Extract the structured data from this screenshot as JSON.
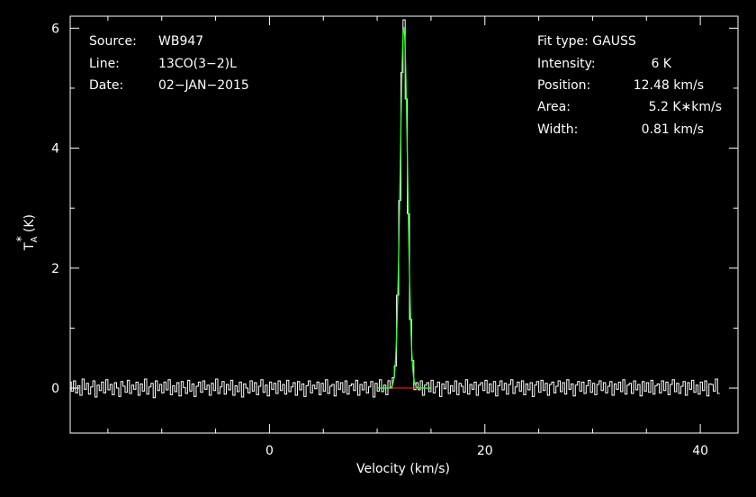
{
  "chart_data": {
    "type": "line",
    "xlabel": "Velocity (km/s)",
    "ylabel_main": "T",
    "ylabel_sub": "A",
    "ylabel_sup": "*",
    "ylabel_unit": "(K)",
    "xlim": [
      -18.5,
      43.5
    ],
    "ylim": [
      -0.75,
      6.2
    ],
    "xticks": [
      0,
      20,
      40
    ],
    "yticks": [
      0,
      2,
      4,
      6
    ],
    "grid": false,
    "header_left": [
      {
        "label": "Source:",
        "value": "WB947"
      },
      {
        "label": "Line:",
        "value": "13CO(3−2)L"
      },
      {
        "label": "Date:",
        "value": "02−JAN−2015"
      }
    ],
    "header_right_title": "Fit type: GAUSS",
    "header_right": [
      {
        "label": "Intensity:",
        "value": "6 K"
      },
      {
        "label": "Position:",
        "value": "12.48 km/s"
      },
      {
        "label": "Area:",
        "value": "5.2 K∗km/s"
      },
      {
        "label": "Width:",
        "value": "0.81 km/s"
      }
    ],
    "series": [
      {
        "kind": "spectrum",
        "color": "#ffffff",
        "x_start": -18.5,
        "x_step": 0.2,
        "values": [
          0.1,
          -0.05,
          0.12,
          -0.08,
          0.04,
          -0.12,
          0.15,
          -0.02,
          0.08,
          -0.1,
          0.02,
          0.12,
          -0.15,
          0.05,
          -0.04,
          0.1,
          -0.08,
          0.14,
          -0.03,
          0.06,
          -0.11,
          0.09,
          0.0,
          -0.14,
          0.11,
          0.03,
          -0.07,
          0.13,
          -0.09,
          0.05,
          -0.02,
          0.1,
          -0.12,
          0.07,
          -0.05,
          0.15,
          -0.1,
          0.02,
          0.08,
          -0.16,
          0.12,
          -0.04,
          0.06,
          -0.08,
          0.1,
          -0.03,
          0.14,
          -0.11,
          0.04,
          -0.06,
          0.09,
          -0.13,
          0.11,
          0.01,
          -0.09,
          0.13,
          -0.05,
          0.07,
          -0.14,
          0.03,
          0.1,
          -0.07,
          0.12,
          -0.02,
          0.05,
          -0.12,
          0.08,
          -0.04,
          0.15,
          -0.09,
          0.02,
          0.11,
          -0.1,
          0.06,
          -0.03,
          0.13,
          -0.12,
          0.04,
          -0.06,
          0.1,
          -0.15,
          0.07,
          0.0,
          -0.08,
          0.12,
          -0.05,
          0.09,
          -0.11,
          0.03,
          0.14,
          -0.07,
          0.05,
          -0.13,
          0.1,
          -0.02,
          0.08,
          -0.09,
          0.12,
          -0.04,
          0.06,
          -0.1,
          0.13,
          -0.06,
          0.02,
          0.09,
          -0.12,
          0.11,
          -0.03,
          0.07,
          -0.14,
          0.04,
          0.12,
          -0.08,
          0.05,
          -0.01,
          0.1,
          -0.11,
          0.08,
          -0.05,
          0.14,
          -0.09,
          0.03,
          0.06,
          -0.13,
          0.11,
          -0.02,
          0.09,
          -0.07,
          0.12,
          -0.1,
          0.04,
          0.07,
          -0.04,
          0.13,
          -0.12,
          0.06,
          -0.03,
          0.1,
          -0.08,
          0.02,
          0.11,
          -0.15,
          0.08,
          -0.05,
          0.14,
          -0.06,
          0.05,
          -0.11,
          0.12,
          -0.02,
          0.07,
          -0.09,
          0.1,
          -0.13,
          0.03,
          0.15,
          -0.07,
          0.06,
          -0.04,
          0.11,
          -0.1,
          0.08,
          -0.03,
          0.12,
          -0.12,
          0.05,
          0.09,
          -0.06,
          0.13,
          -0.08,
          0.02,
          0.1,
          -0.14,
          0.07,
          -0.01,
          0.11,
          -0.09,
          0.04,
          -0.05,
          0.12,
          -0.11,
          0.08,
          0.03,
          -0.07,
          0.14,
          -0.1,
          0.06,
          -0.02,
          0.1,
          -0.12,
          0.05,
          0.09,
          -0.04,
          0.13,
          -0.08,
          0.07,
          -0.06,
          0.11,
          -0.13,
          0.04,
          0.12,
          -0.03,
          0.08,
          -0.1,
          0.06,
          0.14,
          -0.09,
          0.02,
          0.1,
          -0.05,
          0.12,
          -0.11,
          0.07,
          -0.03,
          0.09,
          -0.14,
          0.05,
          0.11,
          -0.07,
          0.13,
          -0.04,
          0.08,
          -0.12,
          0.06,
          0.1,
          -0.08,
          0.03,
          0.12,
          -0.06,
          0.09,
          -0.1,
          0.14,
          -0.02,
          0.07,
          -0.13,
          0.05,
          0.11,
          -0.05,
          0.1,
          -0.09,
          0.04,
          0.13,
          -0.07,
          0.08,
          -0.11,
          0.06,
          0.12,
          -0.04,
          0.09,
          -0.08,
          0.03,
          0.11,
          -0.12,
          0.07,
          -0.02,
          0.1,
          -0.06,
          0.14,
          -0.1,
          0.05,
          0.08,
          -0.09,
          0.12,
          -0.03,
          0.06,
          -0.13,
          0.11,
          -0.05,
          0.09,
          -0.07,
          0.13,
          -0.1,
          0.04,
          0.07,
          -0.08,
          0.12,
          -0.04,
          0.1,
          -0.11,
          0.06,
          0.14,
          -0.06,
          0.08,
          -0.09,
          0.03,
          0.11,
          -0.12,
          0.09,
          -0.02,
          0.13,
          -0.07,
          0.05,
          -0.1,
          0.1,
          -0.04,
          0.12,
          -0.13,
          0.07,
          0.06,
          -0.05,
          0.15,
          -0.09
        ]
      },
      {
        "kind": "gaussian-fit",
        "color": "#33ff33",
        "amplitude": 6.0,
        "center": 12.48,
        "fwhm": 0.81
      },
      {
        "kind": "fit-baseline",
        "color": "#ff2222",
        "x_from": 11.0,
        "x_to": 14.0,
        "y": 0
      }
    ]
  }
}
